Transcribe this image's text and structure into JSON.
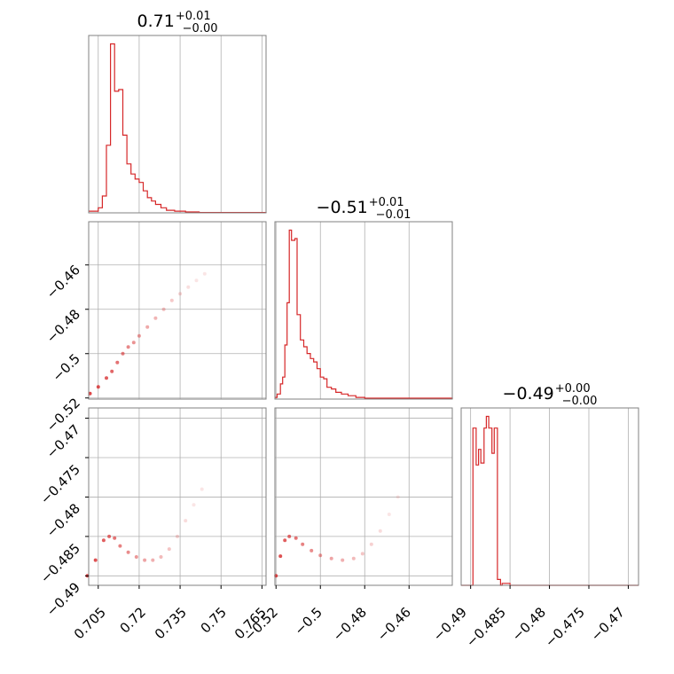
{
  "colors": {
    "series": "#d62728",
    "grid": "#b0b0b0",
    "frame": "#808080"
  },
  "chart_data": {
    "type": "corner",
    "panels": [
      {
        "id": "hist-0",
        "type": "bar",
        "title": {
          "value": "0.71",
          "upper": "+0.01",
          "lower": "−0.00"
        },
        "xlim": [
          0.7015,
          0.7665
        ],
        "x": [
          0.7015,
          0.705,
          0.7065,
          0.708,
          0.7095,
          0.711,
          0.7125,
          0.714,
          0.7155,
          0.717,
          0.7185,
          0.72,
          0.7215,
          0.723,
          0.7245,
          0.726,
          0.728,
          0.73,
          0.733,
          0.737,
          0.742,
          0.7665
        ],
        "values": [
          0.01,
          0.03,
          0.1,
          0.4,
          1.0,
          0.72,
          0.73,
          0.46,
          0.29,
          0.23,
          0.2,
          0.18,
          0.13,
          0.09,
          0.07,
          0.05,
          0.03,
          0.015,
          0.01,
          0.005,
          0.002,
          0
        ],
        "xticks": [
          0.705,
          0.72,
          0.735,
          0.75,
          0.765
        ]
      },
      {
        "id": "hist-1",
        "type": "bar",
        "title": {
          "value": "−0.51",
          "upper": "+0.01",
          "lower": "−0.01"
        },
        "xlim": [
          -0.5205,
          -0.4405
        ],
        "x": [
          -0.5205,
          -0.5195,
          -0.518,
          -0.517,
          -0.516,
          -0.515,
          -0.514,
          -0.513,
          -0.5115,
          -0.5105,
          -0.509,
          -0.5075,
          -0.506,
          -0.5045,
          -0.503,
          -0.5015,
          -0.5,
          -0.4985,
          -0.497,
          -0.495,
          -0.493,
          -0.4905,
          -0.4875,
          -0.484,
          -0.48,
          -0.4405
        ],
        "values": [
          0.01,
          0.03,
          0.09,
          0.13,
          0.32,
          0.57,
          1.0,
          0.94,
          0.95,
          0.5,
          0.35,
          0.31,
          0.27,
          0.24,
          0.22,
          0.18,
          0.13,
          0.12,
          0.07,
          0.06,
          0.04,
          0.03,
          0.02,
          0.01,
          0.005,
          0
        ],
        "xticks": [
          -0.52,
          -0.5,
          -0.48,
          -0.46
        ]
      },
      {
        "id": "hist-2",
        "type": "bar",
        "title": {
          "value": "−0.49",
          "upper": "+0.00",
          "lower": "−0.00"
        },
        "xlim": [
          -0.4912,
          -0.4687
        ],
        "x": [
          -0.4912,
          -0.49,
          -0.4897,
          -0.4893,
          -0.489,
          -0.4887,
          -0.4883,
          -0.488,
          -0.4877,
          -0.4873,
          -0.487,
          -0.4866,
          -0.4862,
          -0.486,
          -0.485,
          -0.4687
        ],
        "values": [
          0,
          0,
          0.81,
          0.62,
          0.7,
          0.63,
          0.81,
          0.87,
          0.81,
          0.68,
          0.81,
          0.03,
          0,
          0.01,
          0,
          0
        ],
        "xticks": [
          -0.49,
          -0.485,
          -0.48,
          -0.475,
          -0.47
        ]
      },
      {
        "id": "scatter-1-0",
        "type": "scatter",
        "xlim": [
          0.7015,
          0.7665
        ],
        "ylim": [
          -0.5205,
          -0.4405
        ],
        "yticks": [
          -0.52,
          -0.5,
          -0.48,
          -0.46
        ],
        "points": [
          [
            0.702,
            -0.518
          ],
          [
            0.705,
            -0.515
          ],
          [
            0.708,
            -0.511
          ],
          [
            0.71,
            -0.508
          ],
          [
            0.712,
            -0.504
          ],
          [
            0.714,
            -0.5
          ],
          [
            0.716,
            -0.497
          ],
          [
            0.718,
            -0.495
          ],
          [
            0.72,
            -0.492
          ],
          [
            0.723,
            -0.488
          ],
          [
            0.726,
            -0.484
          ],
          [
            0.729,
            -0.48
          ],
          [
            0.732,
            -0.476
          ],
          [
            0.735,
            -0.473
          ],
          [
            0.738,
            -0.47
          ],
          [
            0.741,
            -0.467
          ],
          [
            0.744,
            -0.464
          ]
        ]
      },
      {
        "id": "scatter-2-0",
        "type": "scatter",
        "xlim": [
          0.7015,
          0.7665
        ],
        "ylim": [
          -0.4912,
          -0.4687
        ],
        "yticks": [
          -0.49,
          -0.485,
          -0.48,
          -0.475,
          -0.47
        ],
        "points": [
          [
            0.701,
            -0.49
          ],
          [
            0.704,
            -0.488
          ],
          [
            0.707,
            -0.4855
          ],
          [
            0.709,
            -0.485
          ],
          [
            0.711,
            -0.4852
          ],
          [
            0.713,
            -0.4862
          ],
          [
            0.716,
            -0.487
          ],
          [
            0.719,
            -0.4876
          ],
          [
            0.722,
            -0.488
          ],
          [
            0.725,
            -0.488
          ],
          [
            0.728,
            -0.4876
          ],
          [
            0.731,
            -0.4866
          ],
          [
            0.734,
            -0.485
          ],
          [
            0.737,
            -0.483
          ],
          [
            0.74,
            -0.481
          ],
          [
            0.743,
            -0.479
          ]
        ]
      },
      {
        "id": "scatter-2-1",
        "type": "scatter",
        "xlim": [
          -0.5205,
          -0.4405
        ],
        "ylim": [
          -0.4912,
          -0.4687
        ],
        "points": [
          [
            -0.52,
            -0.49
          ],
          [
            -0.518,
            -0.4875
          ],
          [
            -0.516,
            -0.4855
          ],
          [
            -0.514,
            -0.485
          ],
          [
            -0.511,
            -0.4852
          ],
          [
            -0.508,
            -0.486
          ],
          [
            -0.504,
            -0.4868
          ],
          [
            -0.5,
            -0.4874
          ],
          [
            -0.495,
            -0.4878
          ],
          [
            -0.49,
            -0.488
          ],
          [
            -0.485,
            -0.4878
          ],
          [
            -0.481,
            -0.4872
          ],
          [
            -0.477,
            -0.486
          ],
          [
            -0.473,
            -0.4843
          ],
          [
            -0.469,
            -0.4822
          ],
          [
            -0.465,
            -0.48
          ]
        ]
      }
    ]
  }
}
